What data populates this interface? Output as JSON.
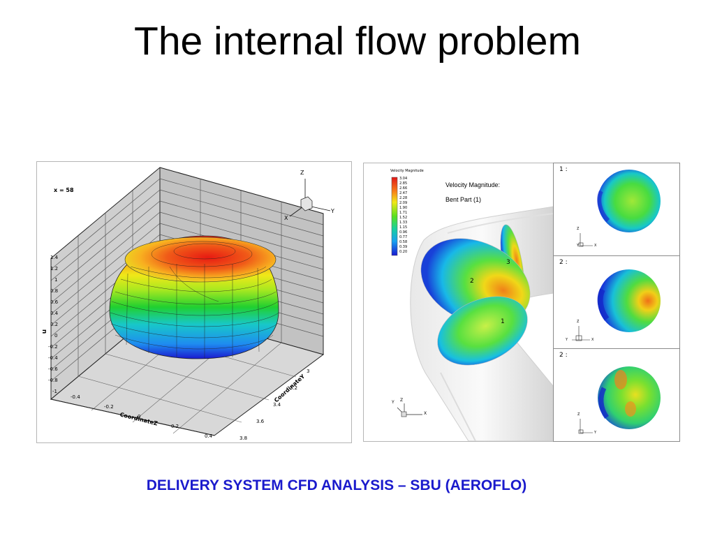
{
  "slide": {
    "title": "The internal flow problem",
    "caption": "DELIVERY SYSTEM CFD ANALYSIS – SBU (AEROFLO)"
  },
  "left_plot": {
    "section_label": "x = 58",
    "u_axis_label": "u",
    "u_ticks": [
      "1.4",
      "1.2",
      "1",
      "0.8",
      "0.6",
      "0.4",
      "0.2",
      "0",
      "-0.2",
      "-0.4",
      "-0.6",
      "-0.8",
      "-1"
    ],
    "z_axis_label": "CoordinateZ",
    "z_ticks": [
      "-0.4",
      "-0.2",
      "0",
      "0.2",
      "0.4"
    ],
    "y_axis_label": "CoordinateY",
    "y_ticks": [
      "3",
      "3.2",
      "3.4",
      "3.6",
      "3.8"
    ],
    "triad": {
      "z": "Z",
      "y": "Y",
      "x": "X"
    }
  },
  "right_plot": {
    "legend_title": "Velocity Magnitude",
    "legend_values": [
      "3.04",
      "2.85",
      "2.66",
      "2.47",
      "2.28",
      "2.09",
      "1.90",
      "1.71",
      "1.52",
      "1.33",
      "1.15",
      "0.96",
      "0.77",
      "0.58",
      "0.39",
      "0.20"
    ],
    "title_line1": "Velocity Magnitude:",
    "title_line2": "Bent Part (1)",
    "section_labels": [
      "1",
      "2",
      "3"
    ],
    "triad": {
      "y": "Y",
      "z": "Z",
      "x": "X"
    }
  },
  "panels": [
    {
      "label": "1 :",
      "axis_a": "Z",
      "axis_b": "X",
      "axis_c": "Y"
    },
    {
      "label": "2 :",
      "axis_a": "Z",
      "axis_b": "X",
      "axis_c": "Y"
    },
    {
      "label": "2 :",
      "axis_a": "Z",
      "axis_b": "Y",
      "axis_c": ""
    }
  ]
}
